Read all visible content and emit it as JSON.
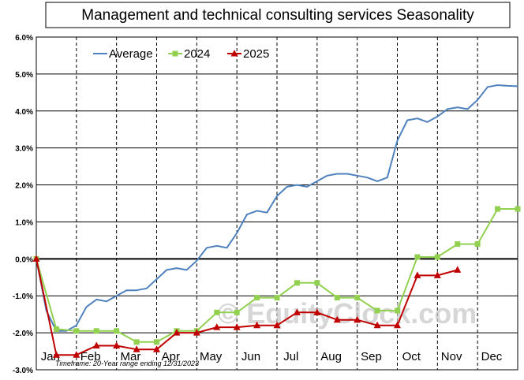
{
  "chart_data": {
    "type": "line",
    "title": "Management  and technical consulting services Seasonality",
    "xlabel": "",
    "ylabel": "",
    "ylim": [
      -3.0,
      6.0
    ],
    "yticks": [
      6.0,
      5.0,
      4.0,
      3.0,
      2.0,
      1.0,
      0.0,
      -1.0,
      -2.0,
      -3.0
    ],
    "ytick_labels": [
      "6.0%",
      "5.0%",
      "4.0%",
      "3.0%",
      "2.0%",
      "1.0%",
      "0.0%",
      "-1.0%",
      "-2.0%",
      "-3.0%"
    ],
    "xlim": [
      0,
      24
    ],
    "categories": [
      "Jan",
      "Feb",
      "Mar",
      "Apr",
      "May",
      "Jun",
      "Jul",
      "Aug",
      "Sep",
      "Oct",
      "Nov",
      "Dec"
    ],
    "category_positions": [
      0.7,
      2.7,
      4.7,
      6.7,
      8.7,
      10.7,
      12.7,
      14.7,
      16.7,
      18.7,
      20.7,
      22.7
    ],
    "month_boundaries": [
      2,
      4,
      6,
      8,
      10,
      12,
      14,
      16,
      18,
      20,
      22
    ],
    "legend_location": "top-left",
    "series": [
      {
        "name": "Average",
        "color": "#4f81bd",
        "marker": "none",
        "x": [
          0,
          0.5,
          1,
          1.5,
          2,
          2.5,
          3,
          3.5,
          4,
          4.5,
          5,
          5.5,
          6,
          6.5,
          7,
          7.5,
          8,
          8.5,
          9,
          9.5,
          10,
          10.5,
          11,
          11.5,
          12,
          12.5,
          13,
          13.5,
          14,
          14.5,
          15,
          15.5,
          16,
          16.5,
          17,
          17.5,
          18,
          18.5,
          19,
          19.5,
          20,
          20.5,
          21,
          21.5,
          22,
          22.5,
          23,
          23.5,
          24
        ],
        "values": [
          0.0,
          -1.4,
          -1.95,
          -1.95,
          -1.8,
          -1.3,
          -1.1,
          -1.15,
          -1.0,
          -0.85,
          -0.85,
          -0.8,
          -0.55,
          -0.3,
          -0.25,
          -0.3,
          -0.05,
          0.3,
          0.35,
          0.3,
          0.7,
          1.2,
          1.3,
          1.25,
          1.7,
          1.95,
          2.0,
          1.95,
          2.1,
          2.25,
          2.3,
          2.3,
          2.25,
          2.2,
          2.1,
          2.2,
          3.2,
          3.75,
          3.8,
          3.7,
          3.85,
          4.05,
          4.1,
          4.05,
          4.3,
          4.65,
          4.7,
          4.68,
          4.67
        ]
      },
      {
        "name": "2024",
        "color": "#92d050",
        "marker": "square",
        "x": [
          0,
          1,
          2,
          3,
          4,
          5,
          6,
          7,
          8,
          9,
          10,
          11,
          12,
          13,
          14,
          15,
          16,
          17,
          18,
          19,
          20,
          21,
          22,
          23,
          24
        ],
        "values": [
          0.0,
          -1.9,
          -1.95,
          -1.95,
          -1.95,
          -2.25,
          -2.25,
          -1.95,
          -1.95,
          -1.45,
          -1.45,
          -1.05,
          -1.05,
          -0.65,
          -0.65,
          -1.05,
          -1.05,
          -1.4,
          -1.4,
          0.05,
          0.05,
          0.4,
          0.4,
          1.35,
          1.35
        ]
      },
      {
        "name": "2025",
        "color": "#c00000",
        "marker": "triangle",
        "x": [
          0,
          1,
          2,
          3,
          4,
          5,
          6,
          7,
          8,
          9,
          10,
          11,
          12,
          13,
          14,
          15,
          16,
          17,
          18,
          19,
          20,
          21
        ],
        "values": [
          0.0,
          -2.6,
          -2.6,
          -2.35,
          -2.35,
          -2.45,
          -2.45,
          -2.0,
          -2.0,
          -1.85,
          -1.85,
          -1.8,
          -1.8,
          -1.45,
          -1.45,
          -1.65,
          -1.65,
          -1.8,
          -1.8,
          -0.45,
          -0.45,
          -0.3
        ]
      }
    ],
    "footnote": "Timeframe: 20-Year range ending 12/31/2023",
    "watermark": "© EquityClock.com"
  }
}
